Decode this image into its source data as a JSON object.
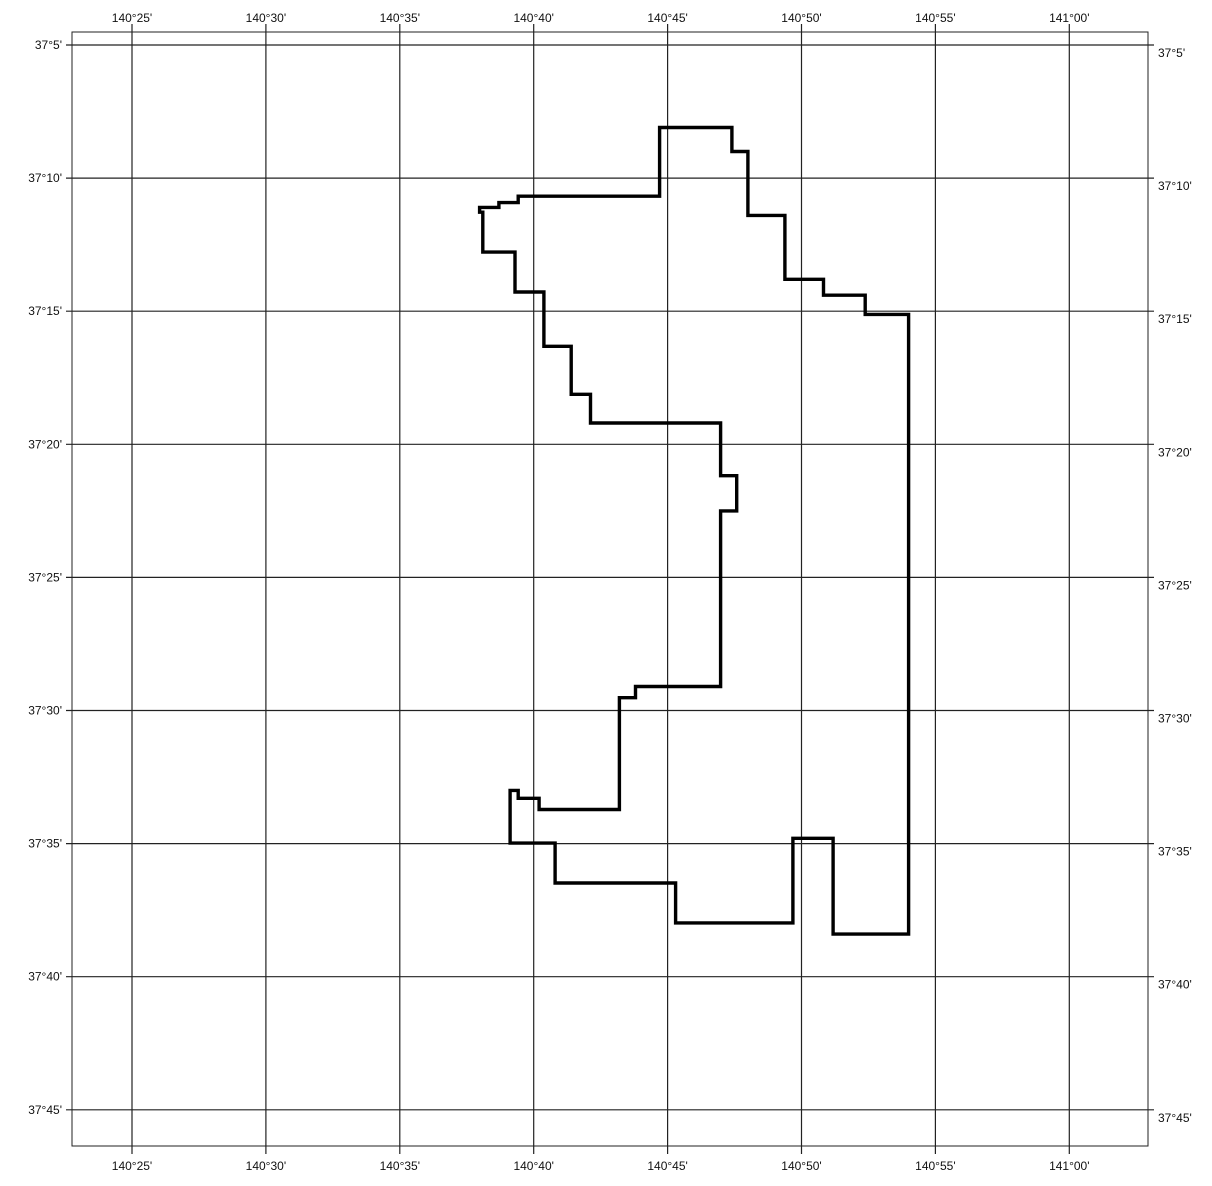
{
  "map": {
    "top_longitude_labels": [
      "140°25'",
      "140°30'",
      "140°35'",
      "140°40'",
      "140°45'",
      "140°50'",
      "140°55'",
      "141°00'"
    ],
    "bottom_longitude_labels": [
      "140°25'",
      "140°30'",
      "140°35'",
      "140°40'",
      "140°45'",
      "140°50'",
      "140°55'",
      "141°00'"
    ],
    "left_latitude_labels": [
      "37°5'",
      "37°10'",
      "37°15'",
      "37°20'",
      "37°25'",
      "37°30'",
      "37°35'",
      "37°40'",
      "37°45'"
    ],
    "right_latitude_labels": [
      "37°5'",
      "37°10'",
      "37°15'",
      "37°20'",
      "37°25'",
      "37°30'",
      "37°35'",
      "37°40'",
      "37°45'"
    ],
    "longitude_values_min": [
      25,
      30,
      35,
      40,
      45,
      50,
      55,
      60
    ],
    "latitude_values_min": [
      5,
      10,
      15,
      20,
      25,
      30,
      35,
      40,
      45
    ],
    "boundary_polygon": [
      [
        140.745,
        37.135
      ],
      [
        140.79,
        37.135
      ],
      [
        140.79,
        37.15
      ],
      [
        140.8,
        37.15
      ],
      [
        140.8,
        37.19
      ],
      [
        140.823,
        37.19
      ],
      [
        140.823,
        37.23
      ],
      [
        140.847,
        37.23
      ],
      [
        140.847,
        37.24
      ],
      [
        140.873,
        37.24
      ],
      [
        140.873,
        37.252
      ],
      [
        140.9,
        37.252
      ],
      [
        140.9,
        37.64
      ],
      [
        140.853,
        37.64
      ],
      [
        140.853,
        37.58
      ],
      [
        140.828,
        37.58
      ],
      [
        140.828,
        37.633
      ],
      [
        140.755,
        37.633
      ],
      [
        140.755,
        37.608
      ],
      [
        140.68,
        37.608
      ],
      [
        140.68,
        37.583
      ],
      [
        140.652,
        37.583
      ],
      [
        140.652,
        37.55
      ],
      [
        140.657,
        37.55
      ],
      [
        140.657,
        37.555
      ],
      [
        140.67,
        37.555
      ],
      [
        140.67,
        37.562
      ],
      [
        140.72,
        37.562
      ],
      [
        140.72,
        37.492
      ],
      [
        140.73,
        37.492
      ],
      [
        140.73,
        37.485
      ],
      [
        140.783,
        37.485
      ],
      [
        140.783,
        37.375
      ],
      [
        140.793,
        37.375
      ],
      [
        140.793,
        37.353
      ],
      [
        140.783,
        37.353
      ],
      [
        140.783,
        37.32
      ],
      [
        140.702,
        37.32
      ],
      [
        140.702,
        37.302
      ],
      [
        140.69,
        37.302
      ],
      [
        140.69,
        37.272
      ],
      [
        140.673,
        37.272
      ],
      [
        140.673,
        37.238
      ],
      [
        140.655,
        37.238
      ],
      [
        140.655,
        37.213
      ],
      [
        140.635,
        37.213
      ],
      [
        140.635,
        37.188
      ],
      [
        140.633,
        37.188
      ],
      [
        140.633,
        37.185
      ],
      [
        140.645,
        37.185
      ],
      [
        140.645,
        37.182
      ],
      [
        140.657,
        37.182
      ],
      [
        140.657,
        37.178
      ],
      [
        140.745,
        37.178
      ]
    ]
  }
}
